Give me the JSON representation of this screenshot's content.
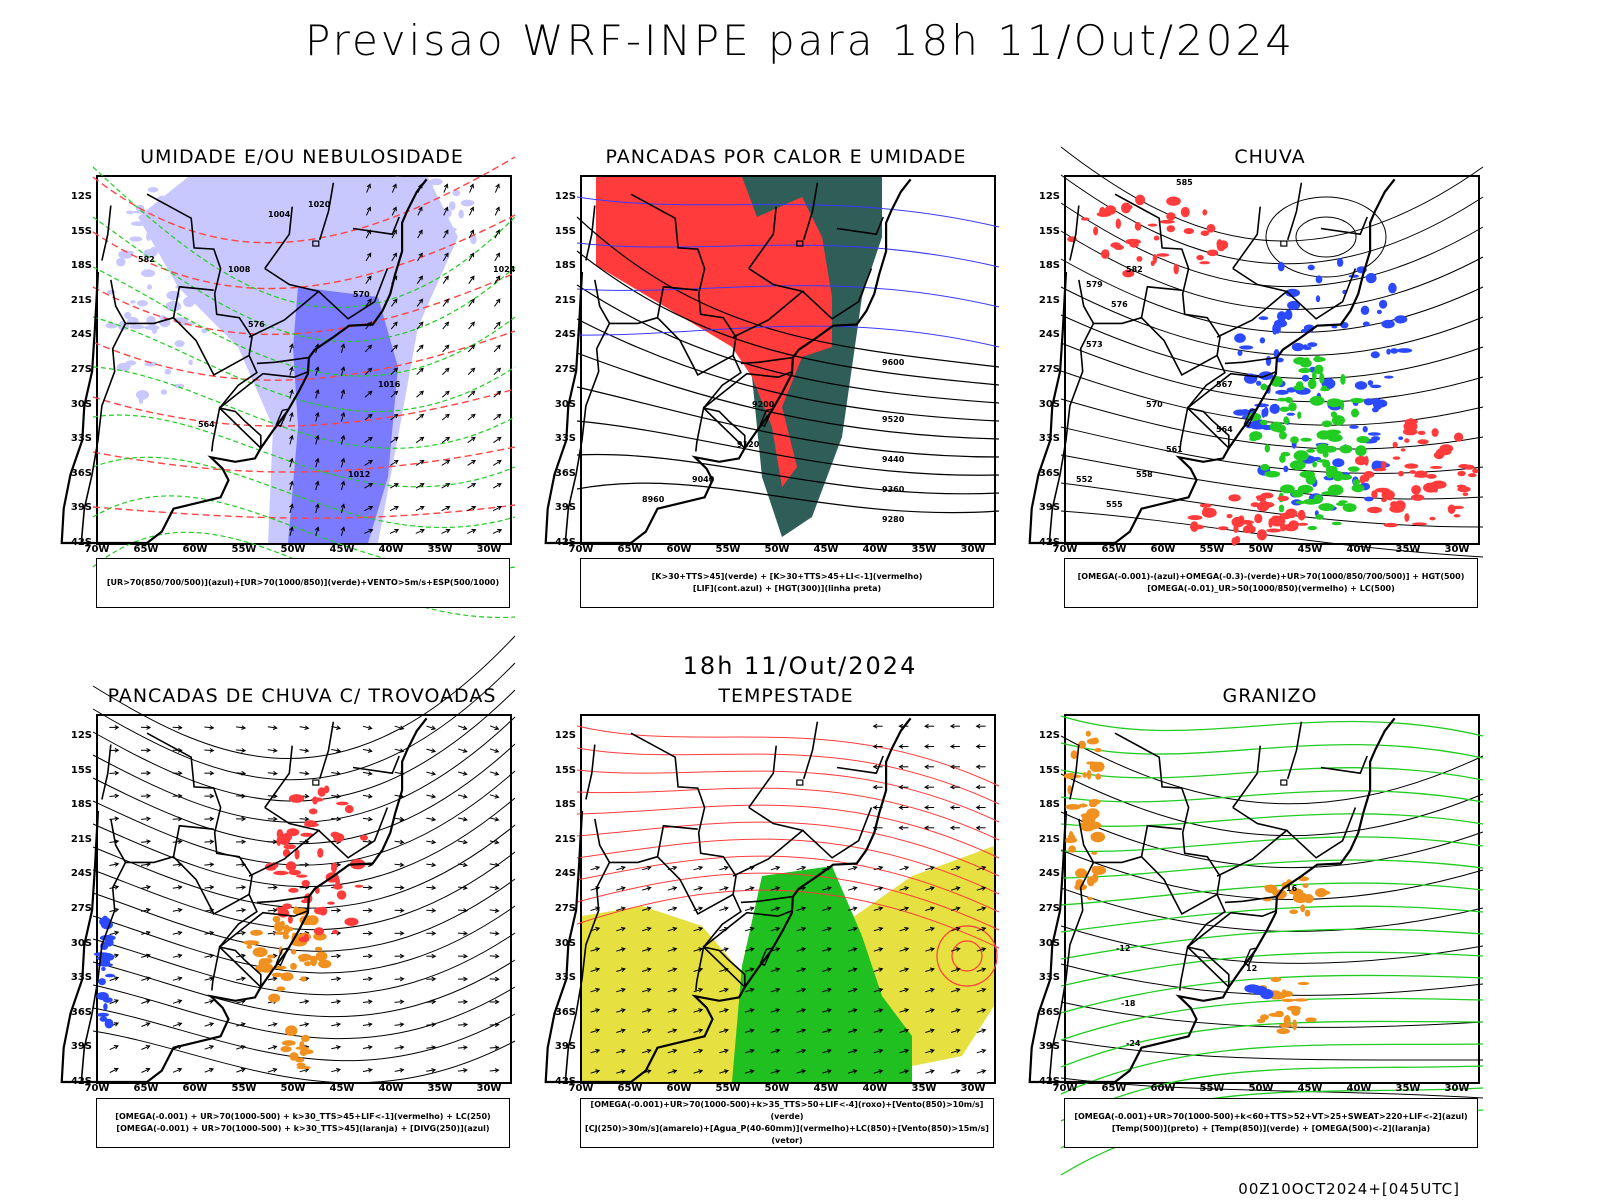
{
  "header": {
    "title": "Previsao WRF-INPE  para 18h 11/Out/2024"
  },
  "mid_title": "18h 11/Out/2024",
  "footer": "00Z10OCT2024+[045UTC]",
  "axes": {
    "lat_labels": [
      "12S",
      "15S",
      "18S",
      "21S",
      "24S",
      "27S",
      "30S",
      "33S",
      "36S",
      "39S",
      "42S"
    ],
    "lon_labels": [
      "70W",
      "65W",
      "60W",
      "55W",
      "50W",
      "45W",
      "40W",
      "35W",
      "30W"
    ]
  },
  "panels": [
    {
      "id": "umidade",
      "title": "UMIDADE E/OU NEBULOSIDADE",
      "legend": [
        "[UR>70(850/700/500)](azul)+[UR>70(1000/850)](verde)+VENTO>5m/s+ESP(500/1000)"
      ]
    },
    {
      "id": "pancadas-calor",
      "title": "PANCADAS POR CALOR E UMIDADE",
      "legend": [
        "[K>30+TTS>45](verde) + [K>30+TTS>45+LI<-1](vermelho)",
        "[LIF](cont.azul) + [HGT(300)](linha preta)"
      ]
    },
    {
      "id": "chuva",
      "title": "CHUVA",
      "legend": [
        "[OMEGA(-0.001)-(azul)+OMEGA(-0.3)-(verde)+UR>70(1000/850/700/500)] + HGT(500)",
        "[OMEGA(-0.01)_UR>50(1000/850)(vermelho) + LC(500)"
      ]
    },
    {
      "id": "pancadas-trovoadas",
      "title": "PANCADAS DE CHUVA C/ TROVOADAS",
      "legend": [
        "[OMEGA(-0.001) + UR>70(1000-500) + k>30_TTS>45+LIF<-1](vermelho) + LC(250)",
        "[OMEGA(-0.001) + UR>70(1000-500) + k>30_TTS>45](laranja) + [DIVG(250)](azul)"
      ]
    },
    {
      "id": "tempestade",
      "title": "TEMPESTADE",
      "legend": [
        "[OMEGA(-0.001)+UR>70(1000-500)+k>35_TTS>50+LIF<-4](roxo)+[Vento(850)>10m/s](verde)",
        "[CJ(250)>30m/s](amarelo)+[Agua_P(40-60mm)](vermelho)+LC(850)+[Vento(850)>15m/s](vetor)"
      ]
    },
    {
      "id": "granizo",
      "title": "GRANIZO",
      "legend": [
        "[OMEGA(-0.001)+UR>70(1000-500)+k<60+TTS>52+VT>25+SWEAT>220+LIF<-2](azul)",
        "[Temp(500)](preto) + [Temp(850)](verde) + [OMEGA(500)<-2](laranja)"
      ]
    }
  ],
  "contour_labels": {
    "umidade": [
      "1004",
      "1008",
      "1012",
      "1016",
      "1020",
      "1024",
      "564",
      "570",
      "576",
      "582"
    ],
    "pancadas-calor": [
      "9600",
      "9520",
      "9440",
      "9360",
      "9280",
      "9200",
      "9120",
      "9040",
      "8960"
    ],
    "chuva": [
      "585",
      "582",
      "579",
      "576",
      "573",
      "570",
      "567",
      "564",
      "561",
      "558",
      "555",
      "552"
    ],
    "granizo": [
      "-12",
      "-18",
      "-24",
      "16",
      "12"
    ]
  },
  "colors": {
    "blue_humidity": "#7b7bff",
    "light_blue": "#c8c8ff",
    "green": "#22cc22",
    "red": "#ff3b3b",
    "dark_teal": "#2f5e58",
    "orange": "#f0901e",
    "yellow": "#e6e040",
    "purple": "#9b30d0"
  }
}
